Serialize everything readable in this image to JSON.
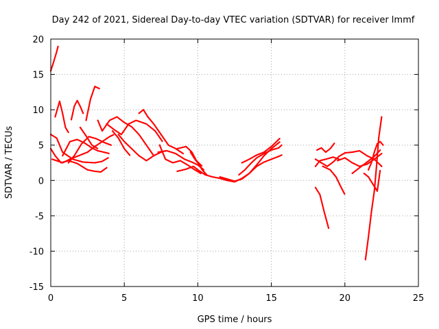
{
  "chart_data": {
    "type": "scatter",
    "title": "Day 242 of 2021, Sidereal Day-to-day VTEC variation (SDTVAR) for receiver lmmf",
    "xlabel": "GPS time / hours",
    "ylabel": "SDTVAR / TECUs",
    "xlim": [
      0,
      25
    ],
    "ylim": [
      -15,
      20
    ],
    "xticks": [
      "0",
      "5",
      "10",
      "15",
      "20",
      "25"
    ],
    "yticks": [
      "-15",
      "-10",
      "-5",
      "0",
      "5",
      "10",
      "15",
      "20"
    ],
    "grid": true,
    "marker": "+",
    "color": "#ff0000",
    "series": [
      {
        "name": "s1",
        "x": [
          0.0,
          0.2,
          0.4,
          0.5
        ],
        "y": [
          15.5,
          16.8,
          18.2,
          19.0
        ]
      },
      {
        "name": "s2",
        "x": [
          0.0,
          0.3,
          0.7,
          1.2,
          1.8,
          2.5,
          3.0,
          3.4,
          3.8
        ],
        "y": [
          4.5,
          3.5,
          2.5,
          2.8,
          2.4,
          1.5,
          1.3,
          1.2,
          1.8
        ]
      },
      {
        "name": "s3",
        "x": [
          0.0,
          0.4,
          0.8,
          1.5,
          2.2,
          3.0,
          3.5,
          3.9
        ],
        "y": [
          6.5,
          6.0,
          4.0,
          3.0,
          2.6,
          2.5,
          2.7,
          3.2
        ]
      },
      {
        "name": "s4",
        "x": [
          0.1,
          0.4,
          0.8,
          1.3,
          1.9,
          2.5,
          3.0,
          3.5,
          4.0,
          4.3
        ],
        "y": [
          3.0,
          2.8,
          2.5,
          3.0,
          3.5,
          4.0,
          4.8,
          5.5,
          6.2,
          6.5
        ]
      },
      {
        "name": "s5",
        "x": [
          0.3,
          0.6,
          0.8,
          1.0,
          1.2
        ],
        "y": [
          9.0,
          11.2,
          9.5,
          7.5,
          6.8
        ]
      },
      {
        "name": "s6",
        "x": [
          0.8,
          1.3,
          1.8,
          2.3,
          2.8,
          3.2,
          3.6,
          4.0
        ],
        "y": [
          3.5,
          5.5,
          5.8,
          5.3,
          4.6,
          4.2,
          4.0,
          3.8
        ]
      },
      {
        "name": "s7",
        "x": [
          1.4,
          1.6,
          1.8,
          2.0,
          2.2
        ],
        "y": [
          8.6,
          10.5,
          11.3,
          10.5,
          9.5
        ]
      },
      {
        "name": "s8",
        "x": [
          1.2,
          1.6,
          2.1,
          2.6,
          3.1,
          3.6,
          4.1
        ],
        "y": [
          2.5,
          3.5,
          5.2,
          6.2,
          5.9,
          5.4,
          5.0
        ]
      },
      {
        "name": "s9",
        "x": [
          2.4,
          2.7,
          3.0,
          3.3
        ],
        "y": [
          8.5,
          11.5,
          13.3,
          13.0
        ]
      },
      {
        "name": "s10",
        "x": [
          2.0,
          2.4,
          2.8,
          3.2
        ],
        "y": [
          7.5,
          6.3,
          5.0,
          4.5
        ]
      },
      {
        "name": "s11",
        "x": [
          3.2,
          3.5,
          4.0,
          4.5,
          5.0,
          5.5,
          6.0,
          6.5,
          7.0
        ],
        "y": [
          8.5,
          7.0,
          8.5,
          9.0,
          8.2,
          7.6,
          6.5,
          5.0,
          3.5
        ]
      },
      {
        "name": "s12",
        "x": [
          3.8,
          4.3,
          4.8,
          5.3,
          5.8,
          6.5,
          7.1,
          7.6
        ],
        "y": [
          8.0,
          7.2,
          6.5,
          8.0,
          8.5,
          8.0,
          7.0,
          5.5
        ]
      },
      {
        "name": "s13",
        "x": [
          4.6,
          5.0,
          5.5,
          6.0,
          6.5,
          7.0,
          7.5,
          7.8
        ],
        "y": [
          6.5,
          5.5,
          4.5,
          3.5,
          2.8,
          3.5,
          4.0,
          4.2
        ]
      },
      {
        "name": "s14",
        "x": [
          4.2,
          4.6,
          5.0,
          5.4
        ],
        "y": [
          7.0,
          6.0,
          4.5,
          3.5
        ]
      },
      {
        "name": "s15",
        "x": [
          6.0,
          6.3,
          6.6,
          7.0,
          7.5,
          8.0,
          8.5,
          9.0
        ],
        "y": [
          9.5,
          10.0,
          9.0,
          8.0,
          6.5,
          5.0,
          4.5,
          3.8
        ]
      },
      {
        "name": "s16",
        "x": [
          7.4,
          7.8,
          8.3,
          8.8,
          9.3,
          9.8,
          10.2
        ],
        "y": [
          5.0,
          3.0,
          2.5,
          2.8,
          2.2,
          1.5,
          1.0
        ]
      },
      {
        "name": "s17",
        "x": [
          7.3,
          7.9,
          8.5,
          9.1,
          9.6,
          10.0,
          10.4
        ],
        "y": [
          4.0,
          4.2,
          3.8,
          3.0,
          2.6,
          2.2,
          1.5
        ]
      },
      {
        "name": "s18",
        "x": [
          8.6,
          9.2,
          9.7,
          10.0,
          10.5,
          11.0,
          11.5,
          12.0,
          12.5,
          13.0,
          13.5,
          14.0,
          14.5,
          15.0,
          15.5,
          15.7
        ],
        "y": [
          1.3,
          1.6,
          2.0,
          1.5,
          0.8,
          0.5,
          0.3,
          0.0,
          -0.2,
          0.3,
          1.0,
          2.0,
          2.6,
          3.0,
          3.4,
          3.6
        ]
      },
      {
        "name": "s19",
        "x": [
          8.6,
          9.2,
          9.6,
          9.9,
          10.3
        ],
        "y": [
          4.5,
          4.8,
          4.0,
          2.8,
          2.0
        ]
      },
      {
        "name": "s20",
        "x": [
          9.5,
          9.8,
          10.0,
          10.3,
          10.6
        ],
        "y": [
          4.0,
          3.0,
          2.5,
          1.5,
          0.8
        ]
      },
      {
        "name": "s21",
        "x": [
          11.5,
          12.0,
          12.5,
          13.0,
          13.5,
          14.0,
          14.5,
          15.0,
          15.6
        ],
        "y": [
          0.5,
          0.2,
          -0.1,
          0.2,
          1.0,
          2.2,
          3.5,
          4.5,
          5.5
        ]
      },
      {
        "name": "s22",
        "x": [
          13.0,
          13.5,
          14.0,
          14.5,
          15.0,
          15.6
        ],
        "y": [
          2.5,
          3.0,
          3.6,
          4.0,
          4.8,
          6.0
        ]
      },
      {
        "name": "s23",
        "x": [
          12.8,
          13.2,
          13.6,
          14.0,
          14.5,
          15.0,
          15.5,
          15.7
        ],
        "y": [
          0.8,
          1.5,
          2.4,
          3.2,
          3.8,
          4.3,
          4.6,
          5.0
        ]
      },
      {
        "name": "s24",
        "x": [
          18.0,
          18.3,
          18.7,
          19.2,
          19.6
        ],
        "y": [
          2.0,
          2.8,
          3.0,
          3.3,
          3.0
        ]
      },
      {
        "name": "s25",
        "x": [
          18.1,
          18.4,
          18.7,
          19.0,
          19.3
        ],
        "y": [
          4.3,
          4.6,
          4.0,
          4.5,
          5.3
        ]
      },
      {
        "name": "s26",
        "x": [
          18.0,
          18.4,
          18.8,
          19.2,
          19.6,
          20.0,
          20.5,
          21.0,
          21.5,
          22.0,
          22.5
        ],
        "y": [
          3.0,
          2.5,
          2.0,
          2.6,
          3.4,
          3.9,
          4.0,
          4.2,
          3.5,
          3.0,
          2.0
        ]
      },
      {
        "name": "s27",
        "x": [
          18.5,
          19.0,
          19.4,
          19.7,
          20.0
        ],
        "y": [
          2.0,
          1.5,
          0.5,
          -0.8,
          -2.0
        ]
      },
      {
        "name": "s28",
        "x": [
          18.0,
          18.3,
          18.6,
          18.9
        ],
        "y": [
          -1.0,
          -2.0,
          -4.5,
          -6.8
        ]
      },
      {
        "name": "s29",
        "x": [
          19.5,
          20.0,
          20.5,
          21.0,
          21.5,
          22.0,
          22.5
        ],
        "y": [
          2.8,
          3.2,
          2.5,
          2.0,
          2.3,
          3.0,
          3.8
        ]
      },
      {
        "name": "s30",
        "x": [
          20.5,
          21.0,
          21.5,
          22.0,
          22.4
        ],
        "y": [
          1.0,
          1.8,
          2.6,
          3.4,
          4.3
        ]
      },
      {
        "name": "s31",
        "x": [
          21.3,
          21.6,
          21.9,
          22.2,
          22.4
        ],
        "y": [
          1.0,
          0.5,
          -0.5,
          -1.5,
          1.5
        ]
      },
      {
        "name": "s32",
        "x": [
          21.6,
          21.8,
          22.0,
          22.2,
          22.4,
          22.6
        ],
        "y": [
          1.5,
          2.5,
          4.0,
          5.2,
          5.5,
          5.0
        ]
      },
      {
        "name": "s33",
        "x": [
          21.4,
          21.6,
          21.8,
          22.0,
          22.15,
          22.3,
          22.5
        ],
        "y": [
          -11.2,
          -8.0,
          -4.5,
          -1.5,
          2.0,
          6.0,
          9.0
        ]
      }
    ]
  }
}
